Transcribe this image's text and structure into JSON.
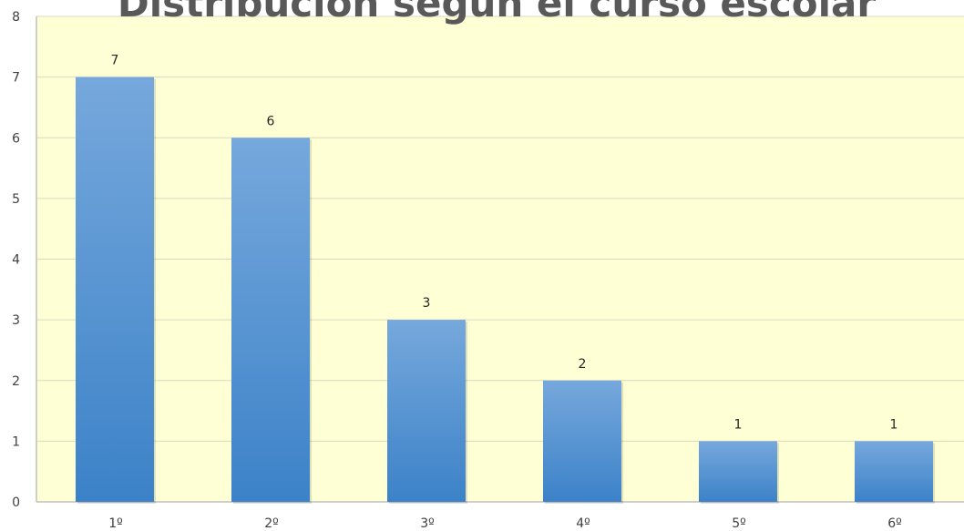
{
  "chart_data": {
    "type": "bar",
    "title": "Distribución según el curso escolar",
    "xlabel": "",
    "ylabel": "",
    "categories": [
      "1º",
      "2º",
      "3º",
      "4º",
      "5º",
      "6º"
    ],
    "values": [
      7,
      6,
      3,
      2,
      1,
      1
    ],
    "data_labels": [
      "7",
      "6",
      "3",
      "2",
      "1",
      "1"
    ],
    "ylim": [
      0,
      8
    ],
    "yticks": [
      "0",
      "1",
      "2",
      "3",
      "4",
      "5",
      "6",
      "7",
      "8"
    ],
    "grid": true,
    "legend": "none"
  },
  "colors": {
    "plot_background": "#ffffd5",
    "bar_top": "#76a8dc",
    "bar_bottom": "#3c82c8",
    "gridline": "#d9d9c0",
    "axis": "#bfbfbf",
    "title": "#595959"
  }
}
